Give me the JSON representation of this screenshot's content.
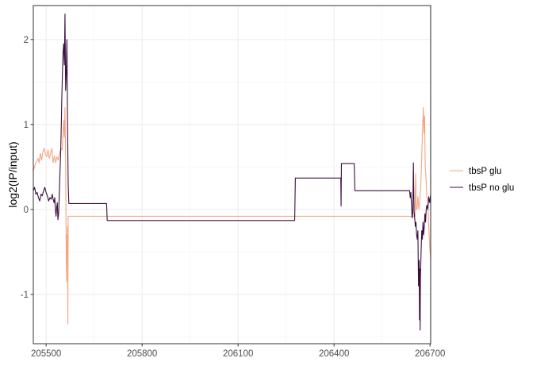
{
  "chart_data": {
    "type": "line",
    "title": "",
    "xlabel": "",
    "ylabel": "log2(IP/input)",
    "xlim": [
      205460,
      206702
    ],
    "ylim": [
      -1.58,
      2.4
    ],
    "x_major_ticks": [
      205500,
      205800,
      206100,
      206400,
      206700
    ],
    "x_minor_ticks": [
      205650,
      205950,
      206250,
      206550
    ],
    "y_major_ticks": [
      -1,
      0,
      1,
      2
    ],
    "y_minor_ticks": [
      -1.5,
      -0.5,
      0.5,
      1.5
    ],
    "x_tick_labels": [
      "205500",
      "205800",
      "206100",
      "206400",
      "206700"
    ],
    "y_tick_labels": [
      "-1",
      "0",
      "1",
      "2"
    ],
    "grid": true,
    "legend_position": "right",
    "series": [
      {
        "name": "tbsP glu",
        "color": "#f4a582",
        "points": [
          [
            205460,
            0.45
          ],
          [
            205465,
            0.52
          ],
          [
            205470,
            0.56
          ],
          [
            205475,
            0.6
          ],
          [
            205478,
            0.55
          ],
          [
            205482,
            0.66
          ],
          [
            205486,
            0.58
          ],
          [
            205490,
            0.68
          ],
          [
            205494,
            0.72
          ],
          [
            205498,
            0.65
          ],
          [
            205502,
            0.62
          ],
          [
            205506,
            0.7
          ],
          [
            205510,
            0.6
          ],
          [
            205514,
            0.66
          ],
          [
            205518,
            0.72
          ],
          [
            205522,
            0.55
          ],
          [
            205526,
            0.63
          ],
          [
            205530,
            0.55
          ],
          [
            205534,
            0.62
          ],
          [
            205538,
            0.58
          ],
          [
            205542,
            0.66
          ],
          [
            205546,
            0.72
          ],
          [
            205550,
            0.7
          ],
          [
            205553,
            0.9
          ],
          [
            205555,
            1.05
          ],
          [
            205557,
            0.85
          ],
          [
            205559,
            1.2
          ],
          [
            205561,
            0.6
          ],
          [
            205563,
            -0.6
          ],
          [
            205564,
            -0.85
          ],
          [
            205565,
            -0.3
          ],
          [
            205566,
            -0.55
          ],
          [
            205567,
            -0.2
          ],
          [
            205568,
            -1.35
          ],
          [
            205569,
            -0.08
          ],
          [
            206653,
            -0.08
          ],
          [
            206655,
            0.42
          ],
          [
            206657,
            0.0
          ],
          [
            206659,
            0.0
          ],
          [
            206662,
            0.15
          ],
          [
            206665,
            0.0
          ],
          [
            206668,
            0.1
          ],
          [
            206671,
            0.3
          ],
          [
            206674,
            0.6
          ],
          [
            206677,
            1.0
          ],
          [
            206679,
            1.2
          ],
          [
            206681,
            0.9
          ],
          [
            206683,
            1.1
          ],
          [
            206685,
            0.5
          ],
          [
            206687,
            0.4
          ],
          [
            206690,
            0.15
          ],
          [
            206693,
            0.1
          ],
          [
            206696,
            -0.2
          ],
          [
            206699,
            -0.45
          ],
          [
            206702,
            -0.58
          ]
        ]
      },
      {
        "name": "tbsP no glu",
        "color": "#3b0f3f",
        "points": [
          [
            205460,
            0.22
          ],
          [
            205464,
            0.26
          ],
          [
            205468,
            0.18
          ],
          [
            205472,
            0.2
          ],
          [
            205476,
            0.14
          ],
          [
            205480,
            0.1
          ],
          [
            205484,
            0.18
          ],
          [
            205488,
            0.16
          ],
          [
            205492,
            0.22
          ],
          [
            205496,
            0.26
          ],
          [
            205500,
            0.2
          ],
          [
            205504,
            0.16
          ],
          [
            205508,
            0.1
          ],
          [
            205512,
            0.14
          ],
          [
            205516,
            0.12
          ],
          [
            205519,
            0.18
          ],
          [
            205522,
            0.12
          ],
          [
            205525,
            0.08
          ],
          [
            205527,
            0.14
          ],
          [
            205529,
            0.0
          ],
          [
            205531,
            -0.08
          ],
          [
            205533,
            0.02
          ],
          [
            205535,
            0.08
          ],
          [
            205537,
            -0.12
          ],
          [
            205539,
            -0.05
          ],
          [
            205541,
            0.15
          ],
          [
            205543,
            0.4
          ],
          [
            205545,
            0.6
          ],
          [
            205547,
            0.9
          ],
          [
            205549,
            1.3
          ],
          [
            205551,
            1.6
          ],
          [
            205553,
            1.85
          ],
          [
            205555,
            1.95
          ],
          [
            205557,
            1.7
          ],
          [
            205559,
            2.3
          ],
          [
            205561,
            1.4
          ],
          [
            205563,
            1.6
          ],
          [
            205565,
            2.0
          ],
          [
            205567,
            1.0
          ],
          [
            205569,
            0.3
          ],
          [
            205571,
            0.07
          ],
          [
            205689,
            0.07
          ],
          [
            205691,
            -0.13
          ],
          [
            206277,
            -0.13
          ],
          [
            206279,
            0.37
          ],
          [
            206421,
            0.37
          ],
          [
            206422,
            0.04
          ],
          [
            206423,
            0.54
          ],
          [
            206463,
            0.54
          ],
          [
            206465,
            0.22
          ],
          [
            206636,
            0.22
          ],
          [
            206638,
            0.14
          ],
          [
            206640,
            0.2
          ],
          [
            206642,
            0.05
          ],
          [
            206644,
            -0.1
          ],
          [
            206646,
            -0.05
          ],
          [
            206648,
            0.55
          ],
          [
            206650,
            -0.02
          ],
          [
            206652,
            -0.1
          ],
          [
            206654,
            -0.2
          ],
          [
            206656,
            -0.15
          ],
          [
            206658,
            -0.3
          ],
          [
            206660,
            -0.35
          ],
          [
            206662,
            -0.25
          ],
          [
            206664,
            -0.9
          ],
          [
            206666,
            -0.6
          ],
          [
            206667,
            -1.3
          ],
          [
            206668,
            -0.7
          ],
          [
            206669,
            -1.42
          ],
          [
            206670,
            -0.8
          ],
          [
            206672,
            -0.5
          ],
          [
            206674,
            -0.25
          ],
          [
            206676,
            -0.35
          ],
          [
            206678,
            -0.15
          ],
          [
            206680,
            -0.3
          ],
          [
            206682,
            -0.2
          ],
          [
            206684,
            -0.05
          ],
          [
            206686,
            -0.15
          ],
          [
            206688,
            0.0
          ],
          [
            206690,
            0.05
          ],
          [
            206693,
            0.0
          ],
          [
            206696,
            0.15
          ],
          [
            206699,
            0.08
          ],
          [
            206702,
            0.18
          ]
        ]
      }
    ]
  }
}
